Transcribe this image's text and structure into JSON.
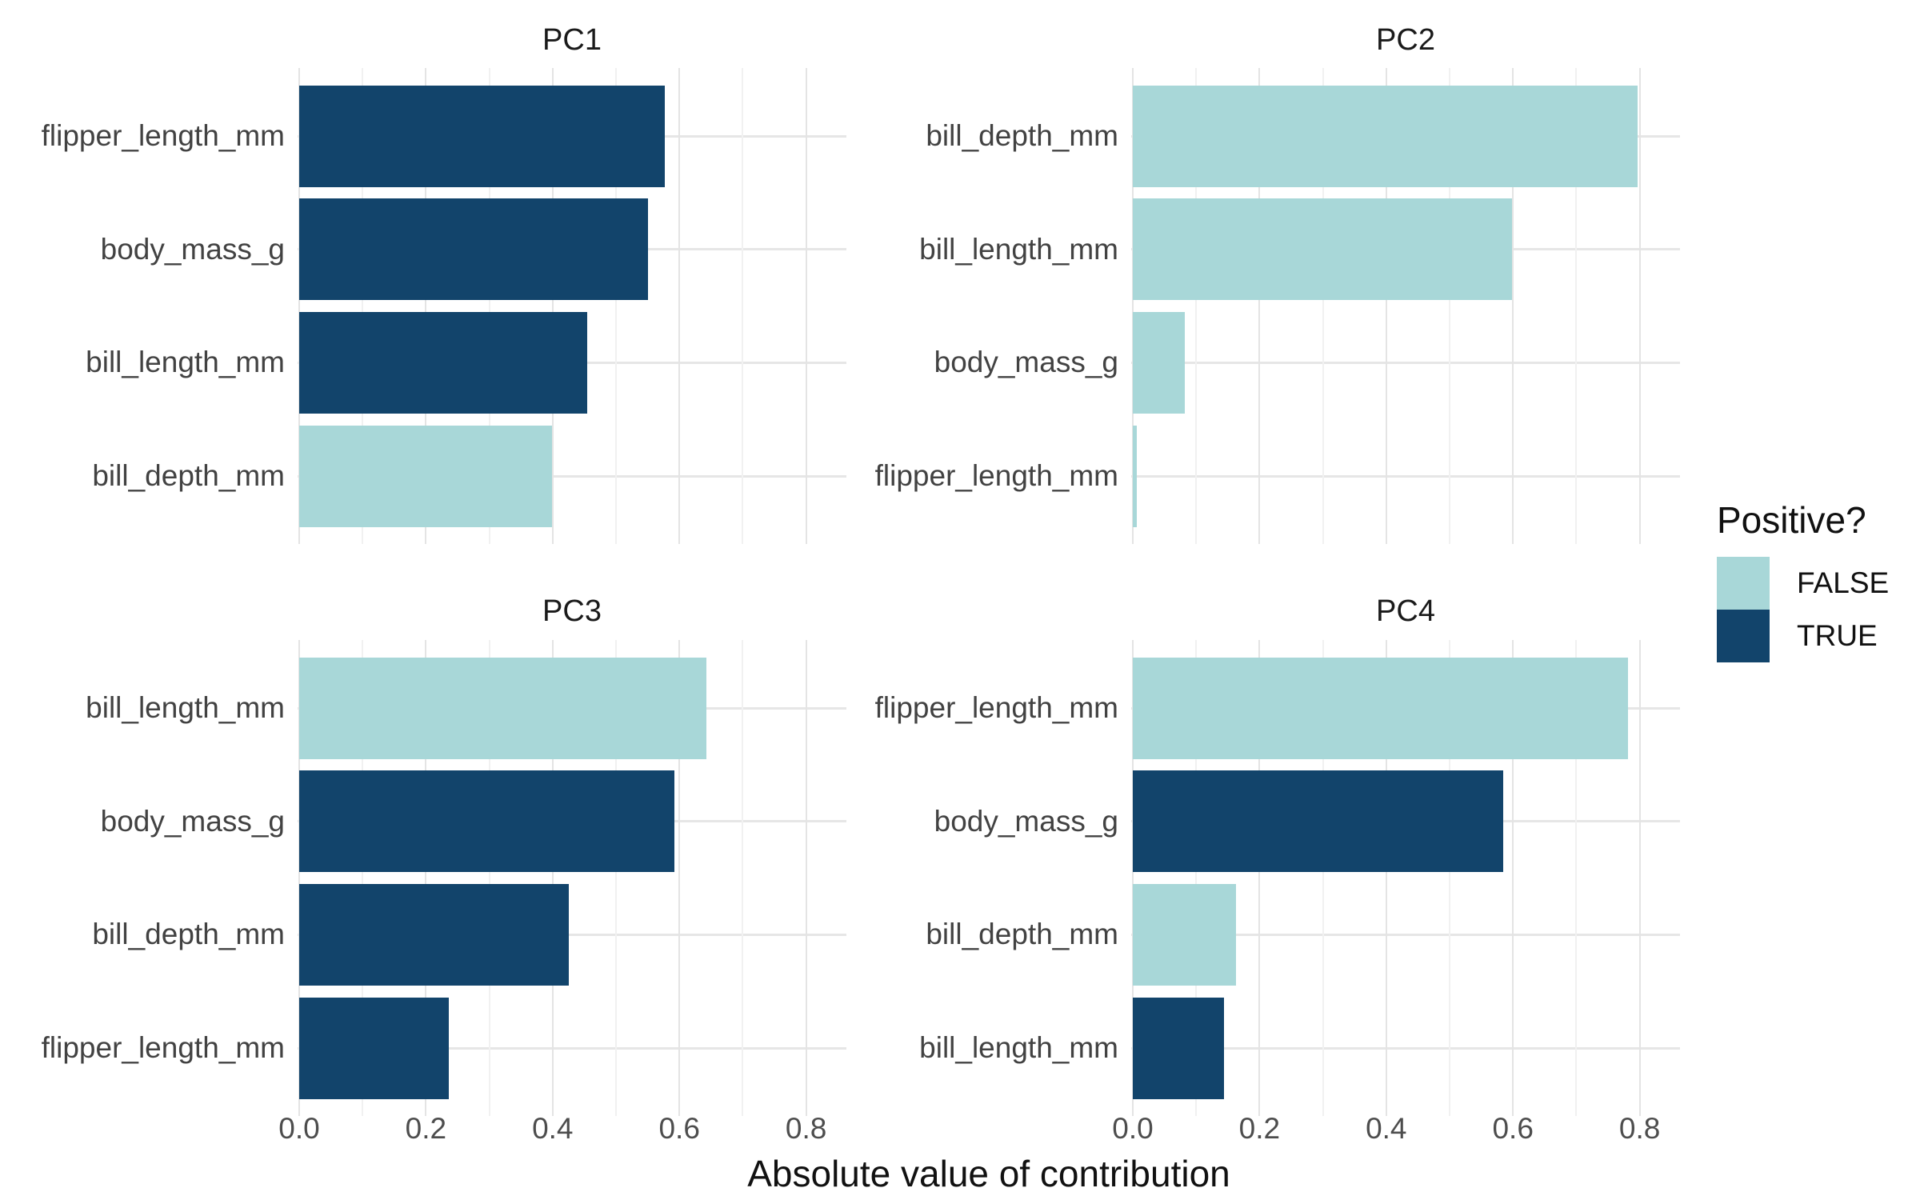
{
  "chart_data": {
    "type": "bar",
    "orientation": "horizontal",
    "xlabel": "Absolute value of contribution",
    "x_ticks": [
      "0.0",
      "0.2",
      "0.4",
      "0.6",
      "0.8"
    ],
    "x_tick_values": [
      0.0,
      0.2,
      0.4,
      0.6,
      0.8
    ],
    "xlim": [
      0,
      0.86
    ],
    "grid": true,
    "facets": [
      {
        "title": "PC1",
        "bars": [
          {
            "label": "flipper_length_mm",
            "value": 0.577,
            "positive": true
          },
          {
            "label": "body_mass_g",
            "value": 0.55,
            "positive": true
          },
          {
            "label": "bill_length_mm",
            "value": 0.454,
            "positive": true
          },
          {
            "label": "bill_depth_mm",
            "value": 0.399,
            "positive": false
          }
        ]
      },
      {
        "title": "PC2",
        "bars": [
          {
            "label": "bill_depth_mm",
            "value": 0.797,
            "positive": false
          },
          {
            "label": "bill_length_mm",
            "value": 0.599,
            "positive": false
          },
          {
            "label": "body_mass_g",
            "value": 0.082,
            "positive": false
          },
          {
            "label": "flipper_length_mm",
            "value": 0.006,
            "positive": false
          }
        ]
      },
      {
        "title": "PC3",
        "bars": [
          {
            "label": "bill_length_mm",
            "value": 0.643,
            "positive": false
          },
          {
            "label": "body_mass_g",
            "value": 0.592,
            "positive": true
          },
          {
            "label": "bill_depth_mm",
            "value": 0.425,
            "positive": true
          },
          {
            "label": "flipper_length_mm",
            "value": 0.236,
            "positive": true
          }
        ]
      },
      {
        "title": "PC4",
        "bars": [
          {
            "label": "flipper_length_mm",
            "value": 0.782,
            "positive": false
          },
          {
            "label": "body_mass_g",
            "value": 0.585,
            "positive": true
          },
          {
            "label": "bill_depth_mm",
            "value": 0.163,
            "positive": false
          },
          {
            "label": "bill_length_mm",
            "value": 0.144,
            "positive": true
          }
        ]
      }
    ],
    "legend": {
      "title": "Positive?",
      "position": "right",
      "entries": [
        {
          "label": "FALSE",
          "color": "#A8D7D8"
        },
        {
          "label": "TRUE",
          "color": "#12446B"
        }
      ]
    }
  }
}
